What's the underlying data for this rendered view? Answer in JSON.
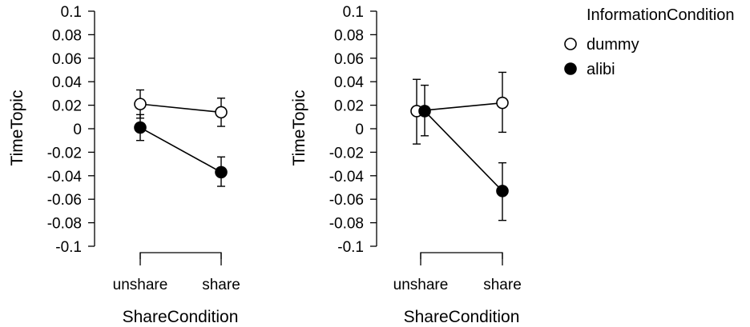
{
  "legend": {
    "title": "InformationCondition",
    "entries": [
      {
        "name": "dummy",
        "marker": "open-circle"
      },
      {
        "name": "alibi",
        "marker": "filled-circle"
      }
    ],
    "placement": "top-right"
  },
  "chart_data": [
    {
      "type": "line",
      "xlabel": "ShareCondition",
      "ylabel": "TimeTopic",
      "categories": [
        "unshare",
        "share"
      ],
      "ylim": [
        -0.1,
        0.1
      ],
      "yticks": [
        0.1,
        0.08,
        0.06,
        0.04,
        0.02,
        0,
        -0.02,
        -0.04,
        -0.06,
        -0.08,
        -0.1
      ],
      "ytick_labels": [
        "0.1",
        "0.08",
        "0.06",
        "0.04",
        "0.02",
        "0",
        "-0.02",
        "-0.04",
        "-0.06",
        "-0.08",
        "-0.1"
      ],
      "grid": false,
      "series": [
        {
          "name": "dummy",
          "marker": "open-circle",
          "values": [
            0.021,
            0.014
          ],
          "err_low": [
            0.009,
            0.002
          ],
          "err_high": [
            0.033,
            0.026
          ]
        },
        {
          "name": "alibi",
          "marker": "filled-circle",
          "values": [
            0.001,
            -0.037
          ],
          "err_low": [
            -0.01,
            -0.049
          ],
          "err_high": [
            0.012,
            -0.024
          ]
        }
      ]
    },
    {
      "type": "line",
      "xlabel": "ShareCondition",
      "ylabel": "TimeTopic",
      "categories": [
        "unshare",
        "share"
      ],
      "ylim": [
        -0.1,
        0.1
      ],
      "yticks": [
        0.1,
        0.08,
        0.06,
        0.04,
        0.02,
        0,
        -0.02,
        -0.04,
        -0.06,
        -0.08,
        -0.1
      ],
      "ytick_labels": [
        "0.1",
        "0.08",
        "0.06",
        "0.04",
        "0.02",
        "0",
        "-0.02",
        "-0.04",
        "-0.06",
        "-0.08",
        "-0.1"
      ],
      "grid": false,
      "series": [
        {
          "name": "dummy",
          "marker": "open-circle",
          "values": [
            0.015,
            0.022
          ],
          "err_low": [
            -0.013,
            -0.003
          ],
          "err_high": [
            0.042,
            0.048
          ]
        },
        {
          "name": "alibi",
          "marker": "filled-circle",
          "values": [
            0.015,
            -0.053
          ],
          "err_low": [
            -0.006,
            -0.078
          ],
          "err_high": [
            0.037,
            -0.029
          ]
        }
      ]
    }
  ]
}
